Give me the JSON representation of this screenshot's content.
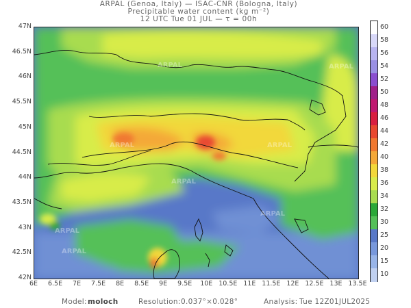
{
  "header": {
    "line1": "ARPAL (Genoa, Italy)  —  ISAC-CNR (Bologna, Italy)",
    "line2": "Precipitable water content (kg m⁻²)",
    "line3": "12 UTC Tue 01 JUL   —   τ = 00h"
  },
  "lat_ticks": [
    "47N",
    "46.5N",
    "46N",
    "45.5N",
    "45N",
    "44.5N",
    "44N",
    "43.5N",
    "43N",
    "42.5N",
    "42N"
  ],
  "lon_ticks": [
    "6E",
    "6.5E",
    "7E",
    "7.5E",
    "8E",
    "8.5E",
    "9E",
    "9.5E",
    "10E",
    "10.5E",
    "11E",
    "11.5E",
    "12E",
    "12.5E",
    "13E",
    "13.5E"
  ],
  "colorbar": {
    "labels": [
      "60",
      "58",
      "56",
      "54",
      "52",
      "50",
      "48",
      "46",
      "44",
      "42",
      "40",
      "38",
      "36",
      "34",
      "32",
      "30",
      "25",
      "20",
      "15",
      "10"
    ],
    "colors": [
      "#ffffff",
      "#d8d8f8",
      "#b8b4f0",
      "#9a90e4",
      "#8a4ed0",
      "#a0208a",
      "#c01870",
      "#d81e40",
      "#e84830",
      "#f07830",
      "#f4a838",
      "#f2d83a",
      "#d8ec4a",
      "#a8dc50",
      "#2aa838",
      "#54c058",
      "#5878c8",
      "#7898dc",
      "#98b4e8",
      "#c0d0f0"
    ]
  },
  "watermark": "ARPAL",
  "footer": {
    "model_label": "Model:",
    "model_value": "moloch",
    "resolution_label": "Resolution:",
    "resolution_value": "0.037°×0.028°",
    "analysis_label": "Analysis:",
    "analysis_value": "Tue 12Z01JUL2025"
  }
}
